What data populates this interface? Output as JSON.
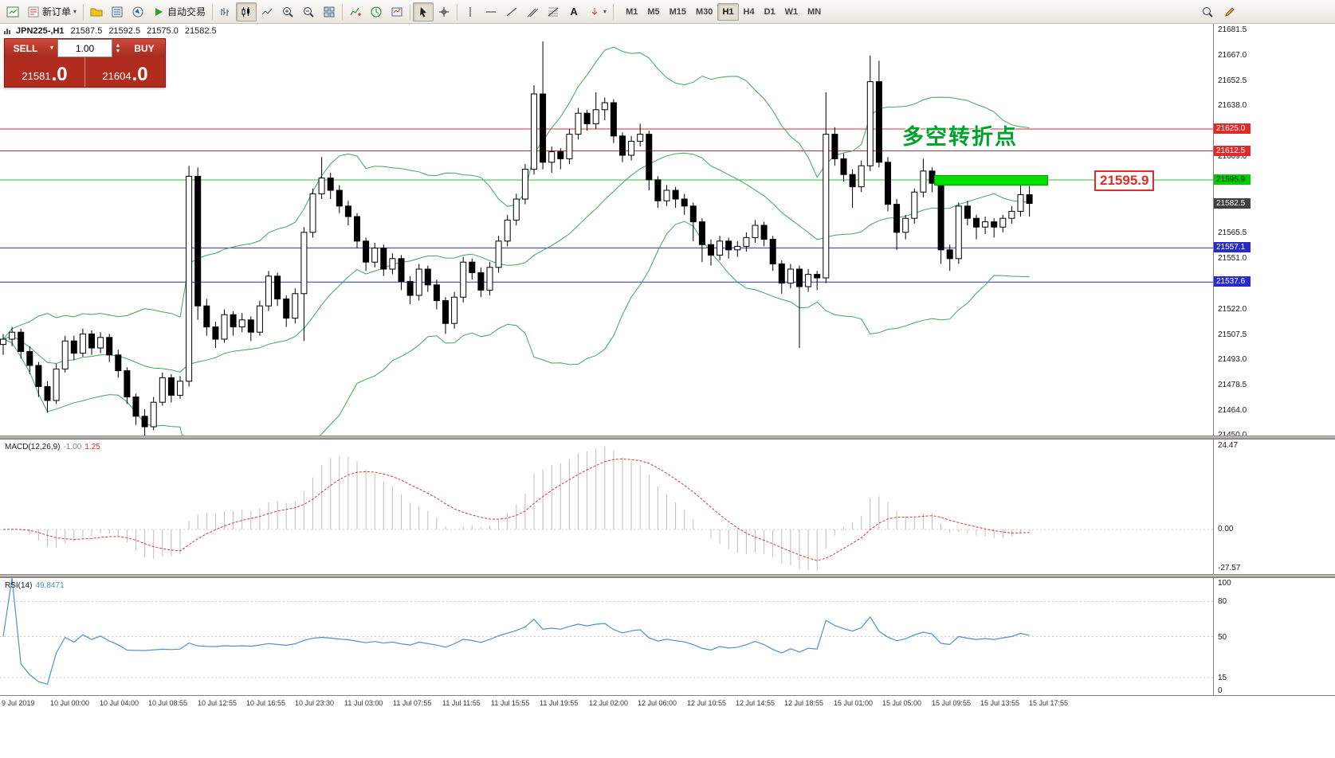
{
  "colors": {
    "bull": "#ffffff",
    "bear": "#000000",
    "band": "#3da65f",
    "red_line": "#e02b2b",
    "green_line": "#2fbf2f",
    "blue_line": "#2929cc",
    "highlight": "#00dd00",
    "macd_hist": "#bdbdbd",
    "macd_signal": "#e03030",
    "rsi": "#4f8fd0",
    "tag_red": "#e02b2b",
    "tag_green": "#00cc00",
    "tag_blue": "#2929cc",
    "tag_current": "#404040"
  },
  "toolbar": {
    "new_order_label": "新订单",
    "autotrade_label": "自动交易",
    "text_tool_label": "A",
    "timeframes": [
      "M1",
      "M5",
      "M15",
      "M30",
      "H1",
      "H4",
      "D1",
      "W1",
      "MN"
    ],
    "active_timeframe": "H1",
    "icon_buttons": [
      "chart-window",
      "new-order",
      "profiles",
      "market-watch",
      "navigator",
      "autotrading",
      "bar-chart",
      "candlestick-chart",
      "line-chart",
      "zoom-in",
      "zoom-out",
      "tile-windows",
      "indicators",
      "periods",
      "templates",
      "cursor",
      "crosshair",
      "vertical-line",
      "horizontal-line",
      "trendline",
      "channel",
      "fibonacci",
      "text",
      "arrows",
      "search",
      "edit"
    ]
  },
  "symbol_bar": {
    "symbol": "JPN225-,H1",
    "open": "21587.5",
    "high": "21592.5",
    "low": "21575.0",
    "close": "21582.5"
  },
  "trade_panel": {
    "sell_label": "SELL",
    "buy_label": "BUY",
    "volume": "1.00",
    "sell_price_big": "21581",
    "sell_price_sup": ".0",
    "buy_price_big": "21604",
    "buy_price_sup": ".0"
  },
  "annotations": {
    "turning_point_text": "多空转折点",
    "price_callout": "21595.9"
  },
  "price_axis": {
    "min": 21450,
    "max": 21685,
    "ticks": [
      {
        "label": "21681.5",
        "price": 21681.5
      },
      {
        "label": "21667.0",
        "price": 21667.0
      },
      {
        "label": "21652.5",
        "price": 21652.5
      },
      {
        "label": "21638.0",
        "price": 21638.0
      },
      {
        "label": "21609.0",
        "price": 21609.0
      },
      {
        "label": "21565.5",
        "price": 21565.5
      },
      {
        "label": "21551.0",
        "price": 21551.0
      },
      {
        "label": "21522.0",
        "price": 21522.0
      },
      {
        "label": "21507.5",
        "price": 21507.5
      },
      {
        "label": "21493.0",
        "price": 21493.0
      },
      {
        "label": "21478.5",
        "price": 21478.5
      },
      {
        "label": "21464.0",
        "price": 21464.0
      },
      {
        "label": "21450.0",
        "price": 21450.0
      }
    ],
    "tags": [
      {
        "label": "21625.0",
        "price": 21625.0,
        "type": "red"
      },
      {
        "label": "21612.5",
        "price": 21612.5,
        "type": "red"
      },
      {
        "label": "21595.9",
        "price": 21595.9,
        "type": "green"
      },
      {
        "label": "21582.5",
        "price": 21582.5,
        "type": "current"
      },
      {
        "label": "21557.1",
        "price": 21557.1,
        "type": "blue"
      },
      {
        "label": "21537.6",
        "price": 21537.6,
        "type": "blue"
      }
    ]
  },
  "macd": {
    "label": "MACD(12,26,9)",
    "value_main": "-1.00",
    "value_signal": "1.25",
    "scale_max": "24.47",
    "scale_zero": "0.00",
    "scale_min": "-27.57",
    "params": {
      "fast": 12,
      "slow": 26,
      "signal": 9
    }
  },
  "rsi": {
    "label": "RSI(14)",
    "value": "49.8471",
    "period": 14,
    "scale_labels": [
      {
        "label": "100",
        "value": 100
      },
      {
        "label": "80",
        "value": 80
      },
      {
        "label": "50",
        "value": 50
      },
      {
        "label": "15",
        "value": 15
      },
      {
        "label": "0",
        "value": 0
      }
    ],
    "levels": [
      80,
      50,
      15
    ]
  },
  "chart_data": {
    "type": "candlestick",
    "symbol": "JPN225-",
    "timeframe": "H1",
    "hlines": [
      {
        "price": 21625.0,
        "color": "red_line"
      },
      {
        "price": 21612.5,
        "color": "red_line"
      },
      {
        "price": 21595.9,
        "color": "green_line"
      },
      {
        "price": 21557.1,
        "color": "blue_line"
      },
      {
        "price": 21537.6,
        "color": "blue_line"
      }
    ],
    "highlight": {
      "price": 21595.9
    },
    "indicators": {
      "bollinger": {
        "period": 20,
        "deviation": 2
      }
    },
    "time_labels": [
      "9 Jul 2019",
      "10 Jul 00:00",
      "10 Jul 04:00",
      "10 Jul 08:55",
      "10 Jul 12:55",
      "10 Jul 16:55",
      "10 Jul 23:30",
      "11 Jul 03:00",
      "11 Jul 07:55",
      "11 Jul 11:55",
      "11 Jul 15:55",
      "11 Jul 19:55",
      "12 Jul 02:00",
      "12 Jul 06:00",
      "12 Jul 10:55",
      "12 Jul 14:55",
      "12 Jul 18:55",
      "15 Jul 01:00",
      "15 Jul 05:00",
      "15 Jul 09:55",
      "15 Jul 13:55",
      "15 Jul 17:55"
    ],
    "candles": [
      [
        21502,
        21508,
        21496,
        21505
      ],
      [
        21505,
        21512,
        21501,
        21509
      ],
      [
        21509,
        21511,
        21494,
        21498
      ],
      [
        21498,
        21501,
        21485,
        21490
      ],
      [
        21490,
        21492,
        21472,
        21478
      ],
      [
        21478,
        21481,
        21463,
        21470
      ],
      [
        21470,
        21491,
        21468,
        21488
      ],
      [
        21488,
        21507,
        21486,
        21504
      ],
      [
        21504,
        21507,
        21493,
        21497
      ],
      [
        21497,
        21511,
        21495,
        21508
      ],
      [
        21508,
        21510,
        21496,
        21500
      ],
      [
        21500,
        21509,
        21497,
        21506
      ],
      [
        21506,
        21508,
        21492,
        21496
      ],
      [
        21496,
        21499,
        21483,
        21487
      ],
      [
        21487,
        21489,
        21468,
        21472
      ],
      [
        21472,
        21474,
        21456,
        21461
      ],
      [
        21461,
        21465,
        21450,
        21455
      ],
      [
        21455,
        21472,
        21453,
        21469
      ],
      [
        21469,
        21486,
        21467,
        21483
      ],
      [
        21483,
        21485,
        21469,
        21473
      ],
      [
        21473,
        21484,
        21471,
        21481
      ],
      [
        21481,
        21604,
        21478,
        21598
      ],
      [
        21598,
        21603,
        21516,
        21524
      ],
      [
        21524,
        21528,
        21507,
        21512
      ],
      [
        21512,
        21515,
        21500,
        21505
      ],
      [
        21505,
        21522,
        21503,
        21519
      ],
      [
        21519,
        21521,
        21507,
        21512
      ],
      [
        21512,
        21520,
        21509,
        21516
      ],
      [
        21516,
        21518,
        21504,
        21509
      ],
      [
        21509,
        21527,
        21507,
        21524
      ],
      [
        21524,
        21544,
        21521,
        21541
      ],
      [
        21541,
        21543,
        21524,
        21528
      ],
      [
        21528,
        21530,
        21512,
        21517
      ],
      [
        21517,
        21534,
        21514,
        21531
      ],
      [
        21531,
        21569,
        21504,
        21566
      ],
      [
        21566,
        21591,
        21563,
        21588
      ],
      [
        21588,
        21609,
        21585,
        21597
      ],
      [
        21597,
        21600,
        21585,
        21590
      ],
      [
        21590,
        21593,
        21577,
        21581
      ],
      [
        21581,
        21584,
        21570,
        21575
      ],
      [
        21575,
        21577,
        21557,
        21561
      ],
      [
        21561,
        21563,
        21544,
        21549
      ],
      [
        21549,
        21560,
        21546,
        21557
      ],
      [
        21557,
        21559,
        21541,
        21545
      ],
      [
        21545,
        21554,
        21542,
        21551
      ],
      [
        21551,
        21553,
        21533,
        21538
      ],
      [
        21538,
        21541,
        21525,
        21530
      ],
      [
        21530,
        21548,
        21527,
        21545
      ],
      [
        21545,
        21547,
        21532,
        21536
      ],
      [
        21536,
        21539,
        21522,
        21527
      ],
      [
        21527,
        21529,
        21508,
        21514
      ],
      [
        21514,
        21532,
        21511,
        21529
      ],
      [
        21529,
        21552,
        21526,
        21549
      ],
      [
        21549,
        21551,
        21539,
        21543
      ],
      [
        21543,
        21546,
        21529,
        21533
      ],
      [
        21533,
        21549,
        21530,
        21546
      ],
      [
        21546,
        21564,
        21543,
        21561
      ],
      [
        21561,
        21576,
        21558,
        21573
      ],
      [
        21573,
        21588,
        21570,
        21585
      ],
      [
        21585,
        21605,
        21582,
        21602
      ],
      [
        21602,
        21650,
        21599,
        21645
      ],
      [
        21645,
        21675,
        21602,
        21606
      ],
      [
        21606,
        21615,
        21600,
        21612
      ],
      [
        21612,
        21614,
        21602,
        21608
      ],
      [
        21608,
        21625,
        21605,
        21622
      ],
      [
        21622,
        21637,
        21619,
        21634
      ],
      [
        21634,
        21636,
        21624,
        21628
      ],
      [
        21628,
        21646,
        21625,
        21636
      ],
      [
        21636,
        21643,
        21630,
        21640
      ],
      [
        21640,
        21642,
        21617,
        21621
      ],
      [
        21621,
        21623,
        21606,
        21610
      ],
      [
        21610,
        21621,
        21607,
        21618
      ],
      [
        21618,
        21628,
        21615,
        21622
      ],
      [
        21622,
        21624,
        21590,
        21596
      ],
      [
        21596,
        21598,
        21580,
        21584
      ],
      [
        21584,
        21593,
        21581,
        21590
      ],
      [
        21590,
        21592,
        21580,
        21585
      ],
      [
        21585,
        21588,
        21576,
        21581
      ],
      [
        21581,
        21583,
        21561,
        21572
      ],
      [
        21572,
        21574,
        21549,
        21559
      ],
      [
        21559,
        21562,
        21547,
        21553
      ],
      [
        21553,
        21564,
        21550,
        21561
      ],
      [
        21561,
        21563,
        21551,
        21556
      ],
      [
        21556,
        21561,
        21552,
        21558
      ],
      [
        21558,
        21566,
        21555,
        21563
      ],
      [
        21563,
        21573,
        21560,
        21570
      ],
      [
        21570,
        21572,
        21558,
        21562
      ],
      [
        21562,
        21564,
        21544,
        21548
      ],
      [
        21548,
        21550,
        21531,
        21537
      ],
      [
        21537,
        21548,
        21534,
        21545
      ],
      [
        21545,
        21547,
        21500,
        21535
      ],
      [
        21535,
        21545,
        21532,
        21542
      ],
      [
        21542,
        21544,
        21533,
        21540
      ],
      [
        21540,
        21646,
        21537,
        21622
      ],
      [
        21622,
        21626,
        21604,
        21608
      ],
      [
        21608,
        21611,
        21595,
        21599
      ],
      [
        21599,
        21602,
        21580,
        21592
      ],
      [
        21592,
        21607,
        21589,
        21604
      ],
      [
        21604,
        21667,
        21601,
        21652
      ],
      [
        21652,
        21664,
        21603,
        21606
      ],
      [
        21606,
        21609,
        21578,
        21582
      ],
      [
        21582,
        21585,
        21556,
        21566
      ],
      [
        21566,
        21576,
        21562,
        21574
      ],
      [
        21574,
        21591,
        21571,
        21589
      ],
      [
        21589,
        21608,
        21586,
        21601
      ],
      [
        21601,
        21603,
        21589,
        21594
      ],
      [
        21594,
        21596,
        21548,
        21556
      ],
      [
        21556,
        21559,
        21544,
        21551
      ],
      [
        21551,
        21583,
        21548,
        21581
      ],
      [
        21581,
        21584,
        21570,
        21574
      ],
      [
        21574,
        21576,
        21562,
        21569
      ],
      [
        21569,
        21575,
        21565,
        21572
      ],
      [
        21572,
        21574,
        21563,
        21569
      ],
      [
        21569,
        21576,
        21566,
        21574
      ],
      [
        21574,
        21581,
        21571,
        21578
      ],
      [
        21578,
        21593,
        21575,
        21587.5
      ],
      [
        21587.5,
        21592.5,
        21575,
        21582.5
      ]
    ]
  }
}
